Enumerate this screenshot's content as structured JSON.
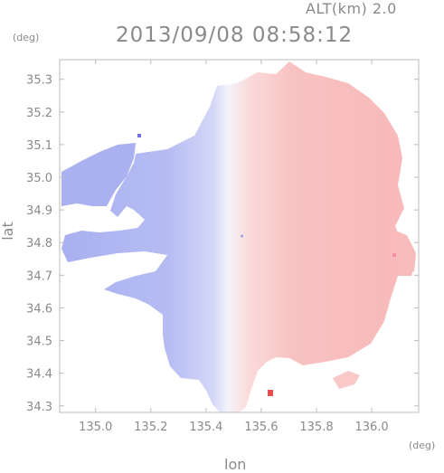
{
  "header": {
    "altitude_label": "ALT(km) 2.0",
    "datetime": "2013/09/08 08:58:12"
  },
  "axes": {
    "y_unit": "(deg)",
    "x_unit": "(deg)",
    "y_label": "lat",
    "x_label": "lon"
  },
  "chart_data": {
    "type": "heatmap",
    "title": "",
    "xlabel": "lon",
    "ylabel": "lat",
    "xlim": [
      134.87,
      136.17
    ],
    "ylim": [
      34.28,
      35.36
    ],
    "x_ticks": [
      "135.0",
      "135.2",
      "135.4",
      "135.6",
      "135.8",
      "136.0"
    ],
    "x_tick_values": [
      135.0,
      135.2,
      135.4,
      135.6,
      135.8,
      136.0
    ],
    "y_ticks": [
      "35.3",
      "35.2",
      "35.1",
      "35.0",
      "34.9",
      "34.8",
      "34.7",
      "34.6",
      "34.5",
      "34.4",
      "34.3"
    ],
    "y_tick_values": [
      35.3,
      35.2,
      35.1,
      35.0,
      34.9,
      34.8,
      34.7,
      34.6,
      34.5,
      34.4,
      34.3
    ],
    "radar_center": [
      135.53,
      34.82
    ],
    "colors": {
      "negative": "#aab0f0",
      "neutral": "#f4f4fb",
      "positive": "#f8b8b8",
      "axis": "#bbbbbb"
    },
    "grid": false
  }
}
